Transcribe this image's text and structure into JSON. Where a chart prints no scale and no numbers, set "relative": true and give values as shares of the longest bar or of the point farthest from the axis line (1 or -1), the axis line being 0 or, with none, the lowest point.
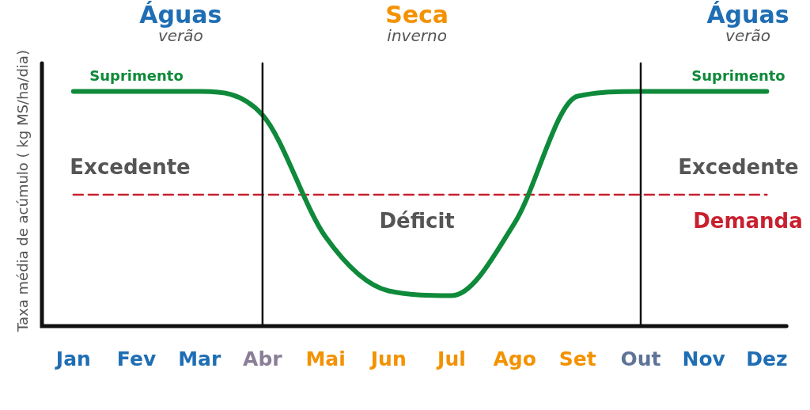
{
  "chart_data": {
    "type": "line",
    "relative": true,
    "ylabel": "Taxa média de acúmulo ( kg MS/ha/dia)",
    "categories": [
      "Jan",
      "Fev",
      "Mar",
      "Abr",
      "Mai",
      "Jun",
      "Jul",
      "Ago",
      "Set",
      "Out",
      "Nov",
      "Dez"
    ],
    "series": [
      {
        "name": "Suprimento",
        "color": "#0e8a3a",
        "values": [
          1,
          1,
          1,
          0.9,
          0.38,
          0.15,
          0.13,
          0.44,
          0.98,
          1,
          1,
          1
        ]
      },
      {
        "name": "Demanda",
        "color": "#c8202f",
        "line_style": "dashed",
        "values": [
          0.56,
          0.56,
          0.56,
          0.56,
          0.56,
          0.56,
          0.56,
          0.56,
          0.56,
          0.56,
          0.56,
          0.56
        ]
      }
    ],
    "ref_lines": [
      {
        "axis": "x",
        "value": "Abr",
        "color": "#111111"
      },
      {
        "axis": "x",
        "value": "Out",
        "color": "#111111"
      }
    ],
    "annotations": [
      "Águas verão",
      "Seca inverno",
      "Águas verão",
      "Excedente",
      "Déficit",
      "Excedente"
    ],
    "marker": "none",
    "grid": false,
    "legend": false
  }
}
